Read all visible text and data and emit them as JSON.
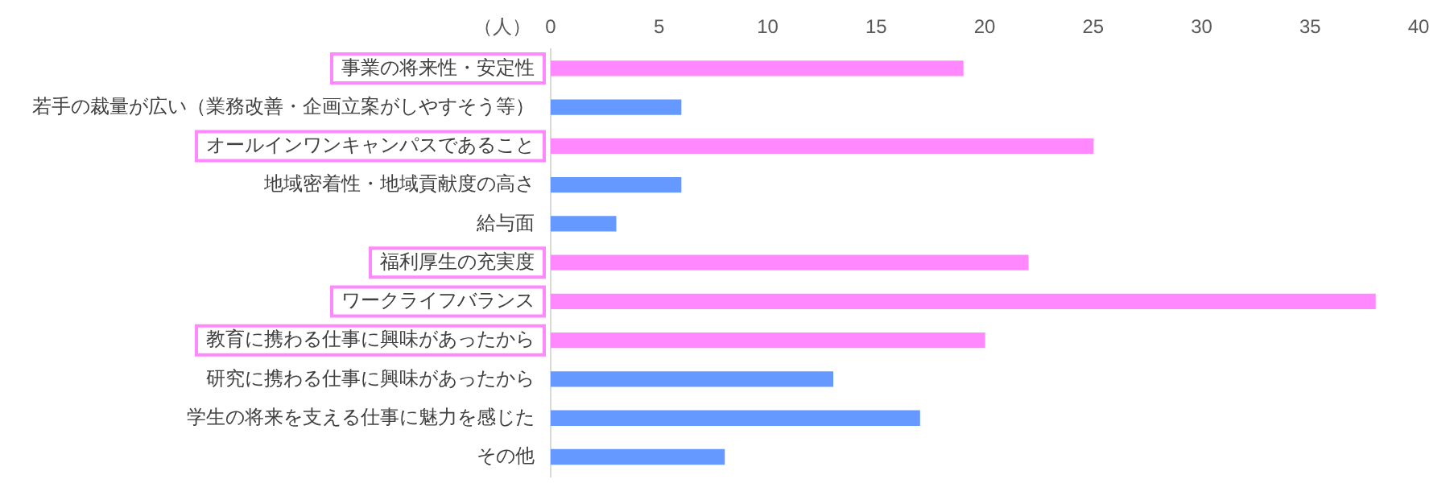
{
  "chart_data": {
    "type": "bar",
    "orientation": "horizontal",
    "xlabel": "（人）",
    "categories": [
      "事業の将来性・安定性",
      "若手の裁量が広い（業務改善・企画立案がしやすそう等）",
      "オールインワンキャンパスであること",
      "地域密着性・地域貢献度の高さ",
      "給与面",
      "福利厚生の充実度",
      "ワークライフバランス",
      "教育に携わる仕事に興味があったから",
      "研究に携わる仕事に興味があったから",
      "学生の将来を支える仕事に魅力を感じた",
      "その他"
    ],
    "values": [
      19,
      6,
      25,
      6,
      3,
      22,
      38,
      20,
      13,
      17,
      8
    ],
    "colors": [
      "#ff88ff",
      "#6699ff",
      "#ff88ff",
      "#6699ff",
      "#6699ff",
      "#ff88ff",
      "#ff88ff",
      "#ff88ff",
      "#6699ff",
      "#6699ff",
      "#6699ff"
    ],
    "xlim": [
      0,
      40
    ],
    "xticks": [
      0,
      5,
      10,
      15,
      20,
      25,
      30,
      35,
      40
    ],
    "grid": false,
    "legend": false
  }
}
